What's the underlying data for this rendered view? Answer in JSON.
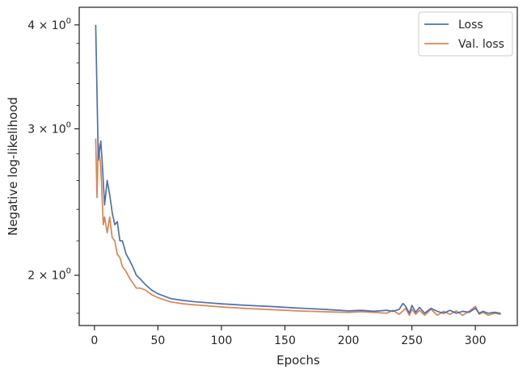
{
  "chart_data": {
    "type": "line",
    "title": "",
    "xlabel": "Epochs",
    "ylabel": "Negative log-likelihood",
    "xlim": [
      -12,
      333
    ],
    "ylim": [
      1.74,
      4.2
    ],
    "yscale": "log",
    "grid": false,
    "legend_position": "top-right",
    "x_ticks": [
      0,
      50,
      100,
      150,
      200,
      250,
      300
    ],
    "y_ticks": [
      {
        "value": 2,
        "mantissa": "2",
        "base": "10",
        "exp": "0"
      },
      {
        "value": 3,
        "mantissa": "3",
        "base": "10",
        "exp": "0"
      },
      {
        "value": 4,
        "mantissa": "4",
        "base": "10",
        "exp": "0"
      }
    ],
    "series": [
      {
        "name": "Loss",
        "color": "#4c72b0",
        "x": [
          1,
          3,
          5,
          6,
          8,
          10,
          12,
          14,
          16,
          18,
          20,
          22,
          25,
          28,
          30,
          33,
          36,
          40,
          45,
          50,
          60,
          70,
          80,
          100,
          120,
          140,
          160,
          180,
          200,
          210,
          220,
          230,
          235,
          240,
          243,
          245,
          248,
          250,
          253,
          256,
          260,
          265,
          270,
          275,
          280,
          285,
          290,
          295,
          300,
          303,
          306,
          310,
          315,
          320
        ],
        "y": [
          4.0,
          2.75,
          2.9,
          2.75,
          2.43,
          2.6,
          2.5,
          2.38,
          2.3,
          2.32,
          2.2,
          2.2,
          2.12,
          2.08,
          2.05,
          2.0,
          1.98,
          1.95,
          1.92,
          1.9,
          1.875,
          1.865,
          1.858,
          1.848,
          1.84,
          1.834,
          1.826,
          1.82,
          1.812,
          1.815,
          1.81,
          1.815,
          1.81,
          1.82,
          1.85,
          1.835,
          1.8,
          1.84,
          1.805,
          1.83,
          1.8,
          1.825,
          1.81,
          1.8,
          1.815,
          1.8,
          1.81,
          1.805,
          1.825,
          1.8,
          1.81,
          1.8,
          1.805,
          1.8
        ]
      },
      {
        "name": "Val. loss",
        "color": "#dd8452",
        "x": [
          1,
          2,
          3,
          5,
          7,
          8,
          10,
          12,
          14,
          16,
          18,
          20,
          22,
          25,
          28,
          30,
          33,
          36,
          40,
          45,
          50,
          60,
          70,
          80,
          100,
          120,
          140,
          160,
          180,
          200,
          210,
          220,
          230,
          235,
          240,
          245,
          248,
          250,
          253,
          256,
          260,
          265,
          270,
          275,
          280,
          285,
          290,
          295,
          300,
          303,
          306,
          310,
          315,
          320
        ],
        "y": [
          2.92,
          2.48,
          2.88,
          2.7,
          2.3,
          2.35,
          2.25,
          2.35,
          2.22,
          2.2,
          2.12,
          2.1,
          2.05,
          2.02,
          1.98,
          1.96,
          1.93,
          1.93,
          1.92,
          1.895,
          1.88,
          1.858,
          1.848,
          1.842,
          1.832,
          1.824,
          1.818,
          1.812,
          1.808,
          1.804,
          1.808,
          1.805,
          1.8,
          1.815,
          1.795,
          1.825,
          1.79,
          1.82,
          1.795,
          1.815,
          1.79,
          1.82,
          1.79,
          1.81,
          1.795,
          1.812,
          1.79,
          1.81,
          1.835,
          1.795,
          1.805,
          1.79,
          1.8,
          1.795
        ]
      }
    ]
  }
}
